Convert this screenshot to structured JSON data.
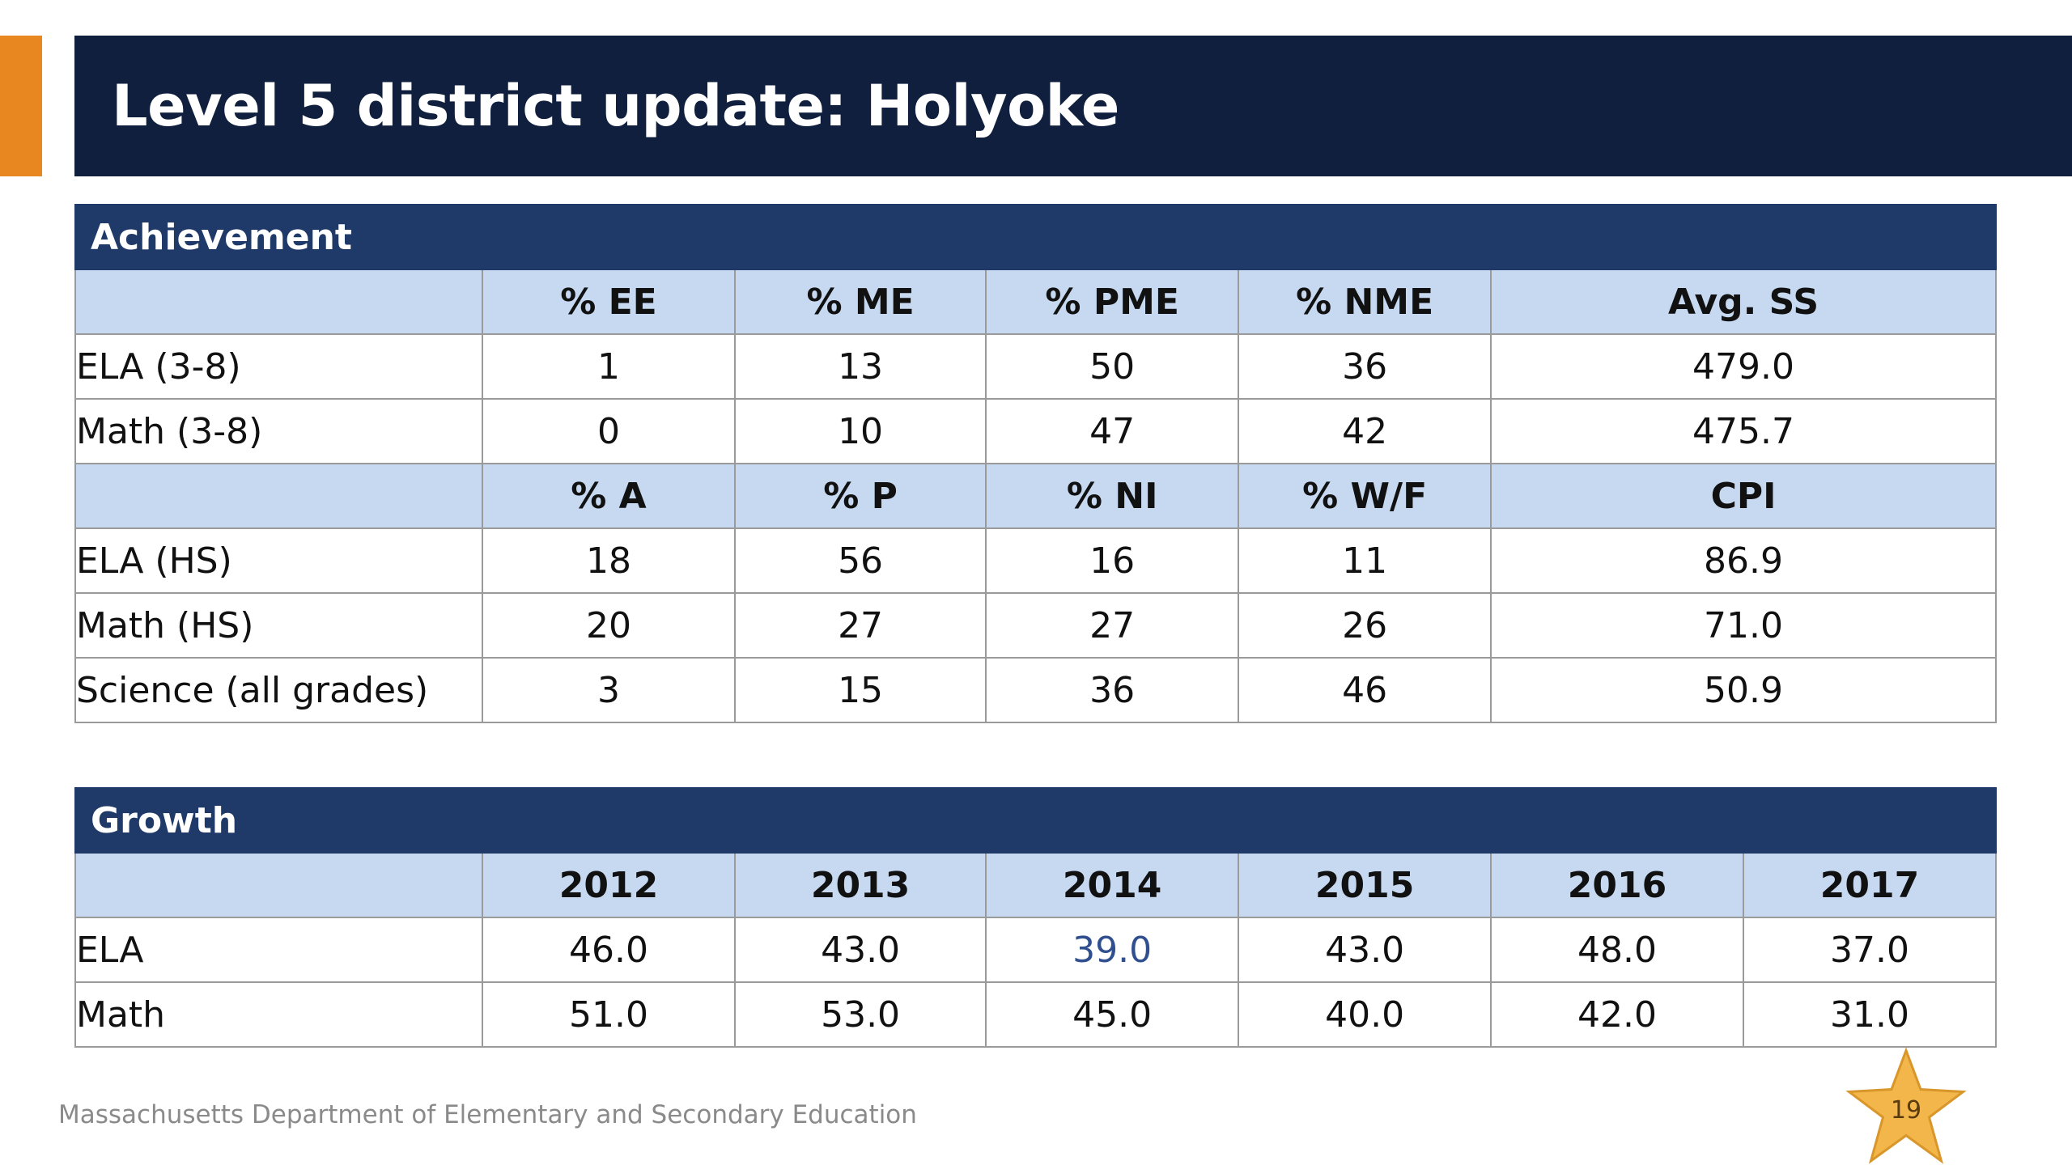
{
  "slide": {
    "title": "Level 5 district update: Holyoke",
    "footer": "Massachusetts Department of Elementary and Secondary Education",
    "page_number": "19"
  },
  "achievement": {
    "heading": "Achievement",
    "header1": [
      "",
      "% EE",
      "% ME",
      "% PME",
      "% NME",
      "Avg. SS"
    ],
    "rows1": [
      [
        "ELA (3-8)",
        "1",
        "13",
        "50",
        "36",
        "479.0"
      ],
      [
        "Math (3-8)",
        "0",
        "10",
        "47",
        "42",
        "475.7"
      ]
    ],
    "header2": [
      "",
      "% A",
      "% P",
      "% NI",
      "% W/F",
      "CPI"
    ],
    "rows2": [
      [
        "ELA (HS)",
        "18",
        "56",
        "16",
        "11",
        "86.9"
      ],
      [
        "Math (HS)",
        "20",
        "27",
        "27",
        "26",
        "71.0"
      ],
      [
        "Science (all grades)",
        "3",
        "15",
        "36",
        "46",
        "50.9"
      ]
    ]
  },
  "growth": {
    "heading": "Growth",
    "header": [
      "",
      "2012",
      "2013",
      "2014",
      "2015",
      "2016",
      "2017"
    ],
    "rows": [
      [
        "ELA",
        "46.0",
        "43.0",
        "39.0",
        "43.0",
        "48.0",
        "37.0"
      ],
      [
        "Math",
        "51.0",
        "53.0",
        "45.0",
        "40.0",
        "42.0",
        "31.0"
      ]
    ]
  },
  "colors": {
    "title_bg": "#0f1f3d",
    "accent": "#e8861f",
    "section_header_bg": "#1f3a68",
    "column_header_bg": "#c6d9f1",
    "star": "#f2b64a",
    "highlight_text": "#2f4f8f"
  }
}
